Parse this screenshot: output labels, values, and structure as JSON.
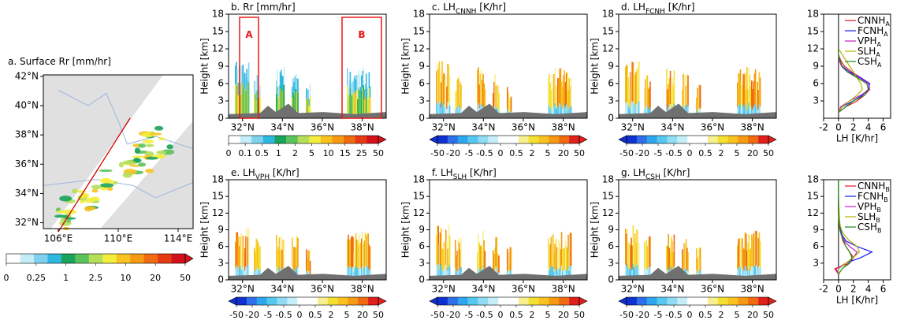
{
  "chart_data": [
    {
      "type": "map",
      "title": "a. Surface Rr [mm/hr]",
      "xlim": [
        105,
        115
      ],
      "ylim": [
        31.6,
        42.1
      ],
      "xticks": [
        {
          "value": 106,
          "label": "106°E"
        },
        {
          "value": 110,
          "label": "110°E"
        },
        {
          "value": 114,
          "label": "114°E"
        }
      ],
      "yticks": [
        {
          "value": 32,
          "label": "32°N"
        },
        {
          "value": 34,
          "label": "34°N"
        },
        {
          "value": 36,
          "label": "36°N"
        },
        {
          "value": 38,
          "label": "38°N"
        },
        {
          "value": 40,
          "label": "40°N"
        },
        {
          "value": 42,
          "label": "42°N"
        }
      ],
      "colorbar": {
        "extend": "max",
        "ticks": [
          0,
          0.25,
          1,
          2.5,
          10,
          20,
          50
        ],
        "colors": [
          "#ffffff",
          "#c6ecf8",
          "#7fd2ee",
          "#2eb8e0",
          "#1aa35a",
          "#5cc25a",
          "#b5de5a",
          "#f3ee3c",
          "#f9c21e",
          "#f59a12",
          "#ef6a10",
          "#e53a12",
          "#d4101a"
        ]
      }
    },
    {
      "type": "cross-section",
      "title": "b. Rr [mm/hr]",
      "ylabel": "Height [km]",
      "xlim": [
        31.3,
        39.2
      ],
      "ylim": [
        0,
        18
      ],
      "yticks": [
        0,
        3,
        6,
        9,
        12,
        15,
        18
      ],
      "xticks": [
        {
          "value": 32,
          "label": "32°N"
        },
        {
          "value": 34,
          "label": "34°N"
        },
        {
          "value": 36,
          "label": "36°N"
        },
        {
          "value": 38,
          "label": "38°N"
        }
      ],
      "boxes": [
        "A",
        "B"
      ],
      "colorbar": {
        "extend": "max",
        "ticks": [
          0,
          0.1,
          0.5,
          1,
          2,
          5,
          10,
          15,
          25,
          50
        ],
        "colors": [
          "#ffffff",
          "#c6ecf8",
          "#7fd2ee",
          "#2eb8e0",
          "#1aa35a",
          "#5cc25a",
          "#b5de5a",
          "#f3ee3c",
          "#f9c21e",
          "#f59a12",
          "#ef6a10",
          "#e53a12",
          "#d4101a"
        ]
      }
    },
    {
      "type": "cross-section",
      "title": "c. LH",
      "title_sub": "CNNH",
      "title_unit": "[K/hr]",
      "ylabel": "Height [km]",
      "xlim": [
        31.3,
        39.2
      ],
      "ylim": [
        0,
        18
      ],
      "yticks": [
        0,
        3,
        6,
        9,
        12,
        15,
        18
      ],
      "xticks": [
        {
          "value": 32,
          "label": "32°N"
        },
        {
          "value": 34,
          "label": "34°N"
        },
        {
          "value": 36,
          "label": "36°N"
        },
        {
          "value": 38,
          "label": "38°N"
        }
      ],
      "colorbar": {
        "extend": "both",
        "ticks": [
          -50,
          -20,
          -5,
          -0.5,
          0,
          0.5,
          2,
          5,
          20,
          50
        ],
        "colors": [
          "#1030d0",
          "#2e6ee8",
          "#2ea6ee",
          "#56c8f0",
          "#8fdcf4",
          "#c6eef8",
          "#ffffff",
          "#ffffff",
          "#f8f090",
          "#f3e030",
          "#f9c21e",
          "#f59a12",
          "#ef6a10",
          "#e0201a"
        ]
      }
    },
    {
      "type": "cross-section",
      "title": "d. LH",
      "title_sub": "FCNH",
      "title_unit": "[K/hr]",
      "ylabel": "Height [km]",
      "xlim": [
        31.3,
        39.2
      ],
      "ylim": [
        0,
        18
      ],
      "yticks": [
        0,
        3,
        6,
        9,
        12,
        15,
        18
      ],
      "xticks": [
        {
          "value": 32,
          "label": "32°N"
        },
        {
          "value": 34,
          "label": "34°N"
        },
        {
          "value": 36,
          "label": "36°N"
        },
        {
          "value": 38,
          "label": "38°N"
        }
      ],
      "colorbar": {
        "extend": "both",
        "ticks": [
          -50,
          -20,
          -5,
          -0.5,
          0,
          0.5,
          2,
          5,
          20,
          50
        ],
        "colors": [
          "#1030d0",
          "#2e6ee8",
          "#2ea6ee",
          "#56c8f0",
          "#8fdcf4",
          "#c6eef8",
          "#ffffff",
          "#ffffff",
          "#f8f090",
          "#f3e030",
          "#f9c21e",
          "#f59a12",
          "#ef6a10",
          "#e0201a"
        ]
      }
    },
    {
      "type": "profile",
      "xlabel": "LH [K/hr]",
      "legend_sub": "A",
      "xlim": [
        -2,
        7
      ],
      "xticks": [
        -2,
        0,
        2,
        4,
        6
      ],
      "ylim": [
        0,
        18
      ],
      "yticks": [
        3,
        6,
        9,
        12,
        15,
        18
      ],
      "y": [
        1,
        2,
        3,
        4,
        5,
        6,
        7,
        8,
        9,
        10,
        11,
        12
      ],
      "series": [
        {
          "name": "CNNH",
          "color": "#e8141c",
          "values": [
            0,
            1,
            2.5,
            3.5,
            4.2,
            4,
            3,
            1.8,
            0.8,
            0.3,
            0,
            0
          ]
        },
        {
          "name": "FCNH",
          "color": "#1a1aff",
          "values": [
            0,
            0.5,
            2,
            3.2,
            4,
            4.2,
            3,
            1.5,
            0.5,
            0.1,
            0,
            0
          ]
        },
        {
          "name": "VPH",
          "color": "#c81ec8",
          "values": [
            0,
            0.3,
            1.5,
            3,
            4.2,
            4,
            2.8,
            1.2,
            0.4,
            0.1,
            0,
            0
          ]
        },
        {
          "name": "SLH",
          "color": "#b4b400",
          "values": [
            0,
            0.5,
            1.5,
            2.5,
            3.2,
            3,
            2.5,
            2,
            1.5,
            1,
            0.5,
            0
          ]
        },
        {
          "name": "CSH",
          "color": "#1a8c1a",
          "values": [
            0,
            1,
            2,
            3.5,
            4,
            3.8,
            2.5,
            1.2,
            0.5,
            0.2,
            0,
            0
          ]
        }
      ]
    },
    {
      "type": "cross-section",
      "title": "e. LH",
      "title_sub": "VPH",
      "title_unit": "[K/hr]",
      "ylabel": "Height [km]",
      "xlim": [
        31.3,
        39.2
      ],
      "ylim": [
        0,
        18
      ],
      "yticks": [
        0,
        3,
        6,
        9,
        12,
        15,
        18
      ],
      "xticks": [
        {
          "value": 32,
          "label": "32°N"
        },
        {
          "value": 34,
          "label": "34°N"
        },
        {
          "value": 36,
          "label": "36°N"
        },
        {
          "value": 38,
          "label": "38°N"
        }
      ],
      "colorbar": {
        "extend": "both",
        "ticks": [
          -50,
          -20,
          -5,
          -0.5,
          0,
          0.5,
          2,
          5,
          20,
          50
        ],
        "colors": [
          "#1030d0",
          "#2e6ee8",
          "#2ea6ee",
          "#56c8f0",
          "#8fdcf4",
          "#c6eef8",
          "#ffffff",
          "#ffffff",
          "#f8f090",
          "#f3e030",
          "#f9c21e",
          "#f59a12",
          "#ef6a10",
          "#e0201a"
        ]
      }
    },
    {
      "type": "cross-section",
      "title": "f. LH",
      "title_sub": "SLH",
      "title_unit": "[K/hr]",
      "ylabel": "Height [km]",
      "xlim": [
        31.3,
        39.2
      ],
      "ylim": [
        0,
        18
      ],
      "yticks": [
        0,
        3,
        6,
        9,
        12,
        15,
        18
      ],
      "xticks": [
        {
          "value": 32,
          "label": "32°N"
        },
        {
          "value": 34,
          "label": "34°N"
        },
        {
          "value": 36,
          "label": "36°N"
        },
        {
          "value": 38,
          "label": "38°N"
        }
      ],
      "colorbar": {
        "extend": "both",
        "ticks": [
          -50,
          -20,
          -5,
          -0.5,
          0,
          0.5,
          2,
          5,
          20,
          50
        ],
        "colors": [
          "#1030d0",
          "#2e6ee8",
          "#2ea6ee",
          "#56c8f0",
          "#8fdcf4",
          "#c6eef8",
          "#ffffff",
          "#ffffff",
          "#f8f090",
          "#f3e030",
          "#f9c21e",
          "#f59a12",
          "#ef6a10",
          "#e0201a"
        ]
      }
    },
    {
      "type": "cross-section",
      "title": "g. LH",
      "title_sub": "CSH",
      "title_unit": "[K/hr]",
      "ylabel": "Height [km]",
      "xlim": [
        31.3,
        39.2
      ],
      "ylim": [
        0,
        18
      ],
      "yticks": [
        0,
        3,
        6,
        9,
        12,
        15,
        18
      ],
      "xticks": [
        {
          "value": 32,
          "label": "32°N"
        },
        {
          "value": 34,
          "label": "34°N"
        },
        {
          "value": 36,
          "label": "36°N"
        },
        {
          "value": 38,
          "label": "38°N"
        }
      ],
      "colorbar": {
        "extend": "both",
        "ticks": [
          -50,
          -20,
          -5,
          -0.5,
          0,
          0.5,
          2,
          5,
          20,
          50
        ],
        "colors": [
          "#1030d0",
          "#2e6ee8",
          "#2ea6ee",
          "#56c8f0",
          "#8fdcf4",
          "#c6eef8",
          "#ffffff",
          "#ffffff",
          "#f8f090",
          "#f3e030",
          "#f9c21e",
          "#f59a12",
          "#ef6a10",
          "#e0201a"
        ]
      }
    },
    {
      "type": "profile",
      "xlabel": "LH [K/hr]",
      "legend_sub": "B",
      "xlim": [
        -2,
        7
      ],
      "xticks": [
        -2,
        0,
        2,
        4,
        6
      ],
      "ylim": [
        0,
        18
      ],
      "yticks": [
        3,
        6,
        9,
        12,
        15,
        18
      ],
      "y": [
        1,
        2,
        3,
        4,
        5,
        6,
        7,
        8,
        9,
        10,
        12,
        15,
        18
      ],
      "series": [
        {
          "name": "CNNH",
          "color": "#e8141c",
          "values": [
            0,
            -0.5,
            1.5,
            2,
            1.5,
            1,
            0.6,
            0.4,
            0.2,
            0.1,
            0,
            0,
            0
          ]
        },
        {
          "name": "FCNH",
          "color": "#1a1aff",
          "values": [
            0,
            0,
            1,
            3,
            4.5,
            2.5,
            1,
            0.5,
            0.3,
            0.1,
            0,
            0,
            0
          ]
        },
        {
          "name": "VPH",
          "color": "#c81ec8",
          "values": [
            0,
            -0.3,
            1,
            2,
            2.5,
            1.5,
            0.8,
            0.4,
            0.2,
            0.1,
            0,
            0,
            0
          ]
        },
        {
          "name": "SLH",
          "color": "#b4b400",
          "values": [
            0,
            0,
            1,
            2,
            2.8,
            2.5,
            1.5,
            0.8,
            0.4,
            0.2,
            0.1,
            0,
            0
          ]
        },
        {
          "name": "CSH",
          "color": "#1a8c1a",
          "values": [
            0,
            0.5,
            1.5,
            1.8,
            1.5,
            1,
            0.7,
            0.4,
            0.2,
            0.1,
            0,
            0,
            0
          ]
        }
      ]
    }
  ]
}
